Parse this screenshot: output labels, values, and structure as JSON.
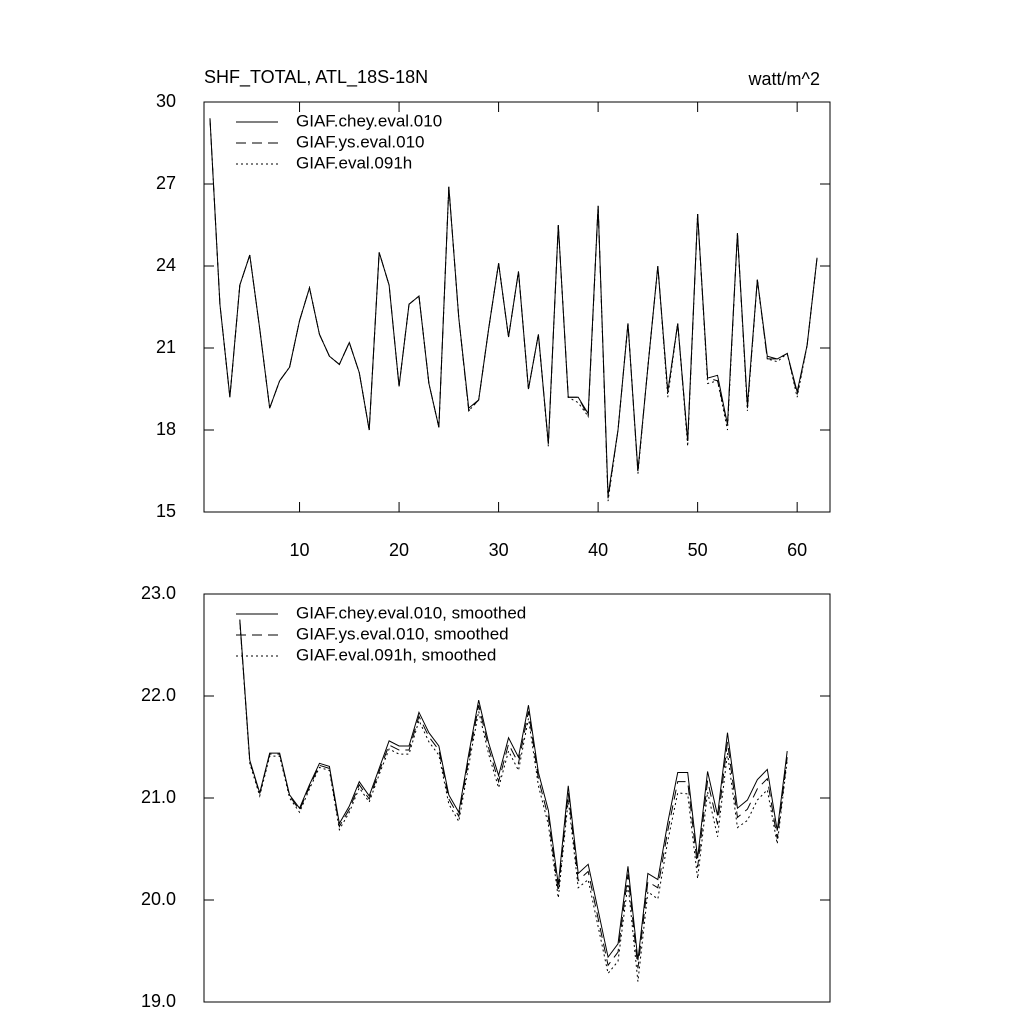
{
  "chart_data": [
    {
      "type": "line",
      "title": "SHF_TOTAL, ATL_18S-18N",
      "units": "watt/m^2",
      "x": [
        1,
        2,
        3,
        4,
        5,
        6,
        7,
        8,
        9,
        10,
        11,
        12,
        13,
        14,
        15,
        16,
        17,
        18,
        19,
        20,
        21,
        22,
        23,
        24,
        25,
        26,
        27,
        28,
        29,
        30,
        31,
        32,
        33,
        34,
        35,
        36,
        37,
        38,
        39,
        40,
        41,
        42,
        43,
        44,
        45,
        46,
        47,
        48,
        49,
        50,
        51,
        52,
        53,
        54,
        55,
        56,
        57,
        58,
        59,
        60,
        61,
        62
      ],
      "series": [
        {
          "name": "GIAF.chey.eval.010",
          "color": "#000000",
          "style": "solid",
          "values": [
            29.4,
            22.6,
            19.2,
            23.3,
            24.4,
            21.7,
            18.8,
            19.8,
            20.3,
            22.0,
            23.2,
            21.5,
            20.7,
            20.4,
            21.2,
            20.1,
            18.0,
            24.5,
            23.3,
            19.6,
            22.6,
            22.9,
            19.7,
            18.1,
            26.9,
            22.1,
            18.8,
            19.1,
            21.7,
            24.1,
            21.4,
            23.8,
            19.5,
            21.5,
            17.5,
            25.5,
            19.2,
            19.2,
            18.6,
            26.2,
            15.6,
            18.0,
            21.9,
            16.5,
            20.3,
            24.0,
            19.4,
            21.9,
            17.6,
            25.9,
            19.9,
            20.0,
            18.2,
            25.2,
            18.9,
            23.5,
            20.7,
            20.6,
            20.8,
            19.4,
            21.1,
            24.3
          ]
        },
        {
          "name": "GIAF.ys.eval.010",
          "color": "#000000",
          "style": "dashed",
          "values": [
            29.4,
            22.6,
            19.2,
            23.3,
            24.4,
            21.7,
            18.8,
            19.8,
            20.3,
            22.0,
            23.2,
            21.5,
            20.7,
            20.4,
            21.2,
            20.1,
            18.0,
            24.5,
            23.3,
            19.6,
            22.6,
            22.9,
            19.7,
            18.1,
            26.9,
            22.1,
            18.7,
            19.1,
            21.7,
            24.1,
            21.4,
            23.8,
            19.5,
            21.5,
            17.5,
            25.5,
            19.2,
            19.2,
            18.5,
            26.2,
            15.5,
            18.0,
            21.9,
            16.5,
            20.3,
            24.0,
            19.4,
            21.9,
            17.6,
            25.9,
            19.9,
            19.8,
            18.2,
            25.2,
            18.8,
            23.5,
            20.6,
            20.6,
            20.8,
            19.3,
            21.1,
            24.3
          ]
        },
        {
          "name": "GIAF.eval.091h",
          "color": "#000000",
          "style": "dotted",
          "values": [
            29.4,
            22.6,
            19.2,
            23.3,
            24.4,
            21.7,
            18.8,
            19.8,
            20.3,
            22.0,
            23.2,
            21.5,
            20.7,
            20.4,
            21.2,
            20.1,
            18.0,
            24.5,
            23.3,
            19.6,
            22.6,
            22.9,
            19.7,
            18.1,
            26.9,
            22.1,
            18.7,
            19.1,
            21.7,
            24.1,
            21.4,
            23.8,
            19.5,
            21.5,
            17.4,
            25.5,
            19.2,
            19.0,
            18.5,
            26.2,
            15.4,
            18.0,
            21.9,
            16.4,
            20.3,
            24.0,
            19.2,
            21.9,
            17.4,
            25.9,
            19.7,
            19.8,
            18.0,
            25.2,
            18.7,
            23.5,
            20.6,
            20.5,
            20.8,
            19.2,
            21.1,
            24.3
          ]
        }
      ],
      "xlim": [
        0.4,
        63.3
      ],
      "xticks": [
        10,
        20,
        30,
        40,
        50,
        60
      ],
      "ylim": [
        15,
        30
      ],
      "yticks": [
        15,
        18,
        21,
        24,
        27,
        30
      ]
    },
    {
      "type": "line",
      "x": [
        4,
        5,
        6,
        7,
        8,
        9,
        10,
        11,
        12,
        13,
        14,
        15,
        16,
        17,
        18,
        19,
        20,
        21,
        22,
        23,
        24,
        25,
        26,
        27,
        28,
        29,
        30,
        31,
        32,
        33,
        34,
        35,
        36,
        37,
        38,
        39,
        40,
        41,
        42,
        43,
        44,
        45,
        46,
        47,
        48,
        49,
        50,
        51,
        52,
        53,
        54,
        55,
        56,
        57,
        58,
        59
      ],
      "series": [
        {
          "name": "GIAF.chey.eval.010, smoothed",
          "color": "#000000",
          "style": "solid",
          "values": [
            22.75,
            21.37,
            21.05,
            21.44,
            21.44,
            21.03,
            20.9,
            21.13,
            21.34,
            21.31,
            20.75,
            20.92,
            21.16,
            21.02,
            21.29,
            21.56,
            21.51,
            21.51,
            21.84,
            21.64,
            21.51,
            21.03,
            20.86,
            21.43,
            21.96,
            21.54,
            21.22,
            21.59,
            21.4,
            21.91,
            21.25,
            20.88,
            20.15,
            21.12,
            20.26,
            20.35,
            19.9,
            19.44,
            19.57,
            20.33,
            19.41,
            20.26,
            20.2,
            20.76,
            21.25,
            21.25,
            20.41,
            21.26,
            20.83,
            21.64,
            20.9,
            20.98,
            21.18,
            21.28,
            20.68,
            21.46
          ]
        },
        {
          "name": "GIAF.ys.eval.010, smoothed",
          "color": "#000000",
          "style": "dashed",
          "values": [
            22.74,
            21.36,
            21.04,
            21.43,
            21.43,
            21.02,
            20.88,
            21.11,
            21.32,
            21.29,
            20.72,
            20.89,
            21.13,
            20.99,
            21.26,
            21.52,
            21.47,
            21.47,
            21.8,
            21.6,
            21.47,
            20.99,
            20.82,
            21.38,
            21.91,
            21.49,
            21.16,
            21.53,
            21.34,
            21.85,
            21.19,
            20.81,
            20.08,
            21.05,
            20.19,
            20.28,
            19.82,
            19.36,
            19.49,
            20.25,
            19.33,
            20.18,
            20.12,
            20.68,
            21.16,
            21.16,
            20.32,
            21.17,
            20.74,
            21.55,
            20.81,
            20.89,
            21.09,
            21.19,
            20.6,
            21.4
          ]
        },
        {
          "name": "GIAF.eval.091h, smoothed",
          "color": "#000000",
          "style": "dotted",
          "values": [
            22.72,
            21.34,
            21.02,
            21.41,
            21.41,
            21.0,
            20.86,
            21.09,
            21.3,
            21.27,
            20.69,
            20.86,
            21.1,
            20.96,
            21.23,
            21.48,
            21.43,
            21.43,
            21.76,
            21.55,
            21.42,
            20.94,
            20.77,
            21.32,
            21.85,
            21.43,
            21.1,
            21.46,
            21.27,
            21.78,
            21.12,
            20.74,
            20.02,
            20.98,
            20.12,
            20.2,
            19.74,
            19.28,
            19.4,
            20.16,
            19.2,
            20.08,
            20.01,
            20.58,
            21.05,
            21.04,
            20.21,
            21.06,
            20.62,
            21.44,
            20.71,
            20.78,
            20.98,
            21.08,
            20.55,
            21.37
          ]
        }
      ],
      "xlim": [
        0.4,
        63.3
      ],
      "ylim": [
        19,
        23
      ],
      "yticks": [
        {
          "value": 19,
          "label": "19.0"
        },
        {
          "value": 20,
          "label": "20.0"
        },
        {
          "value": 21,
          "label": "21.0"
        },
        {
          "value": 22,
          "label": "22.0"
        },
        {
          "value": 23,
          "label": "23.0"
        }
      ]
    }
  ]
}
